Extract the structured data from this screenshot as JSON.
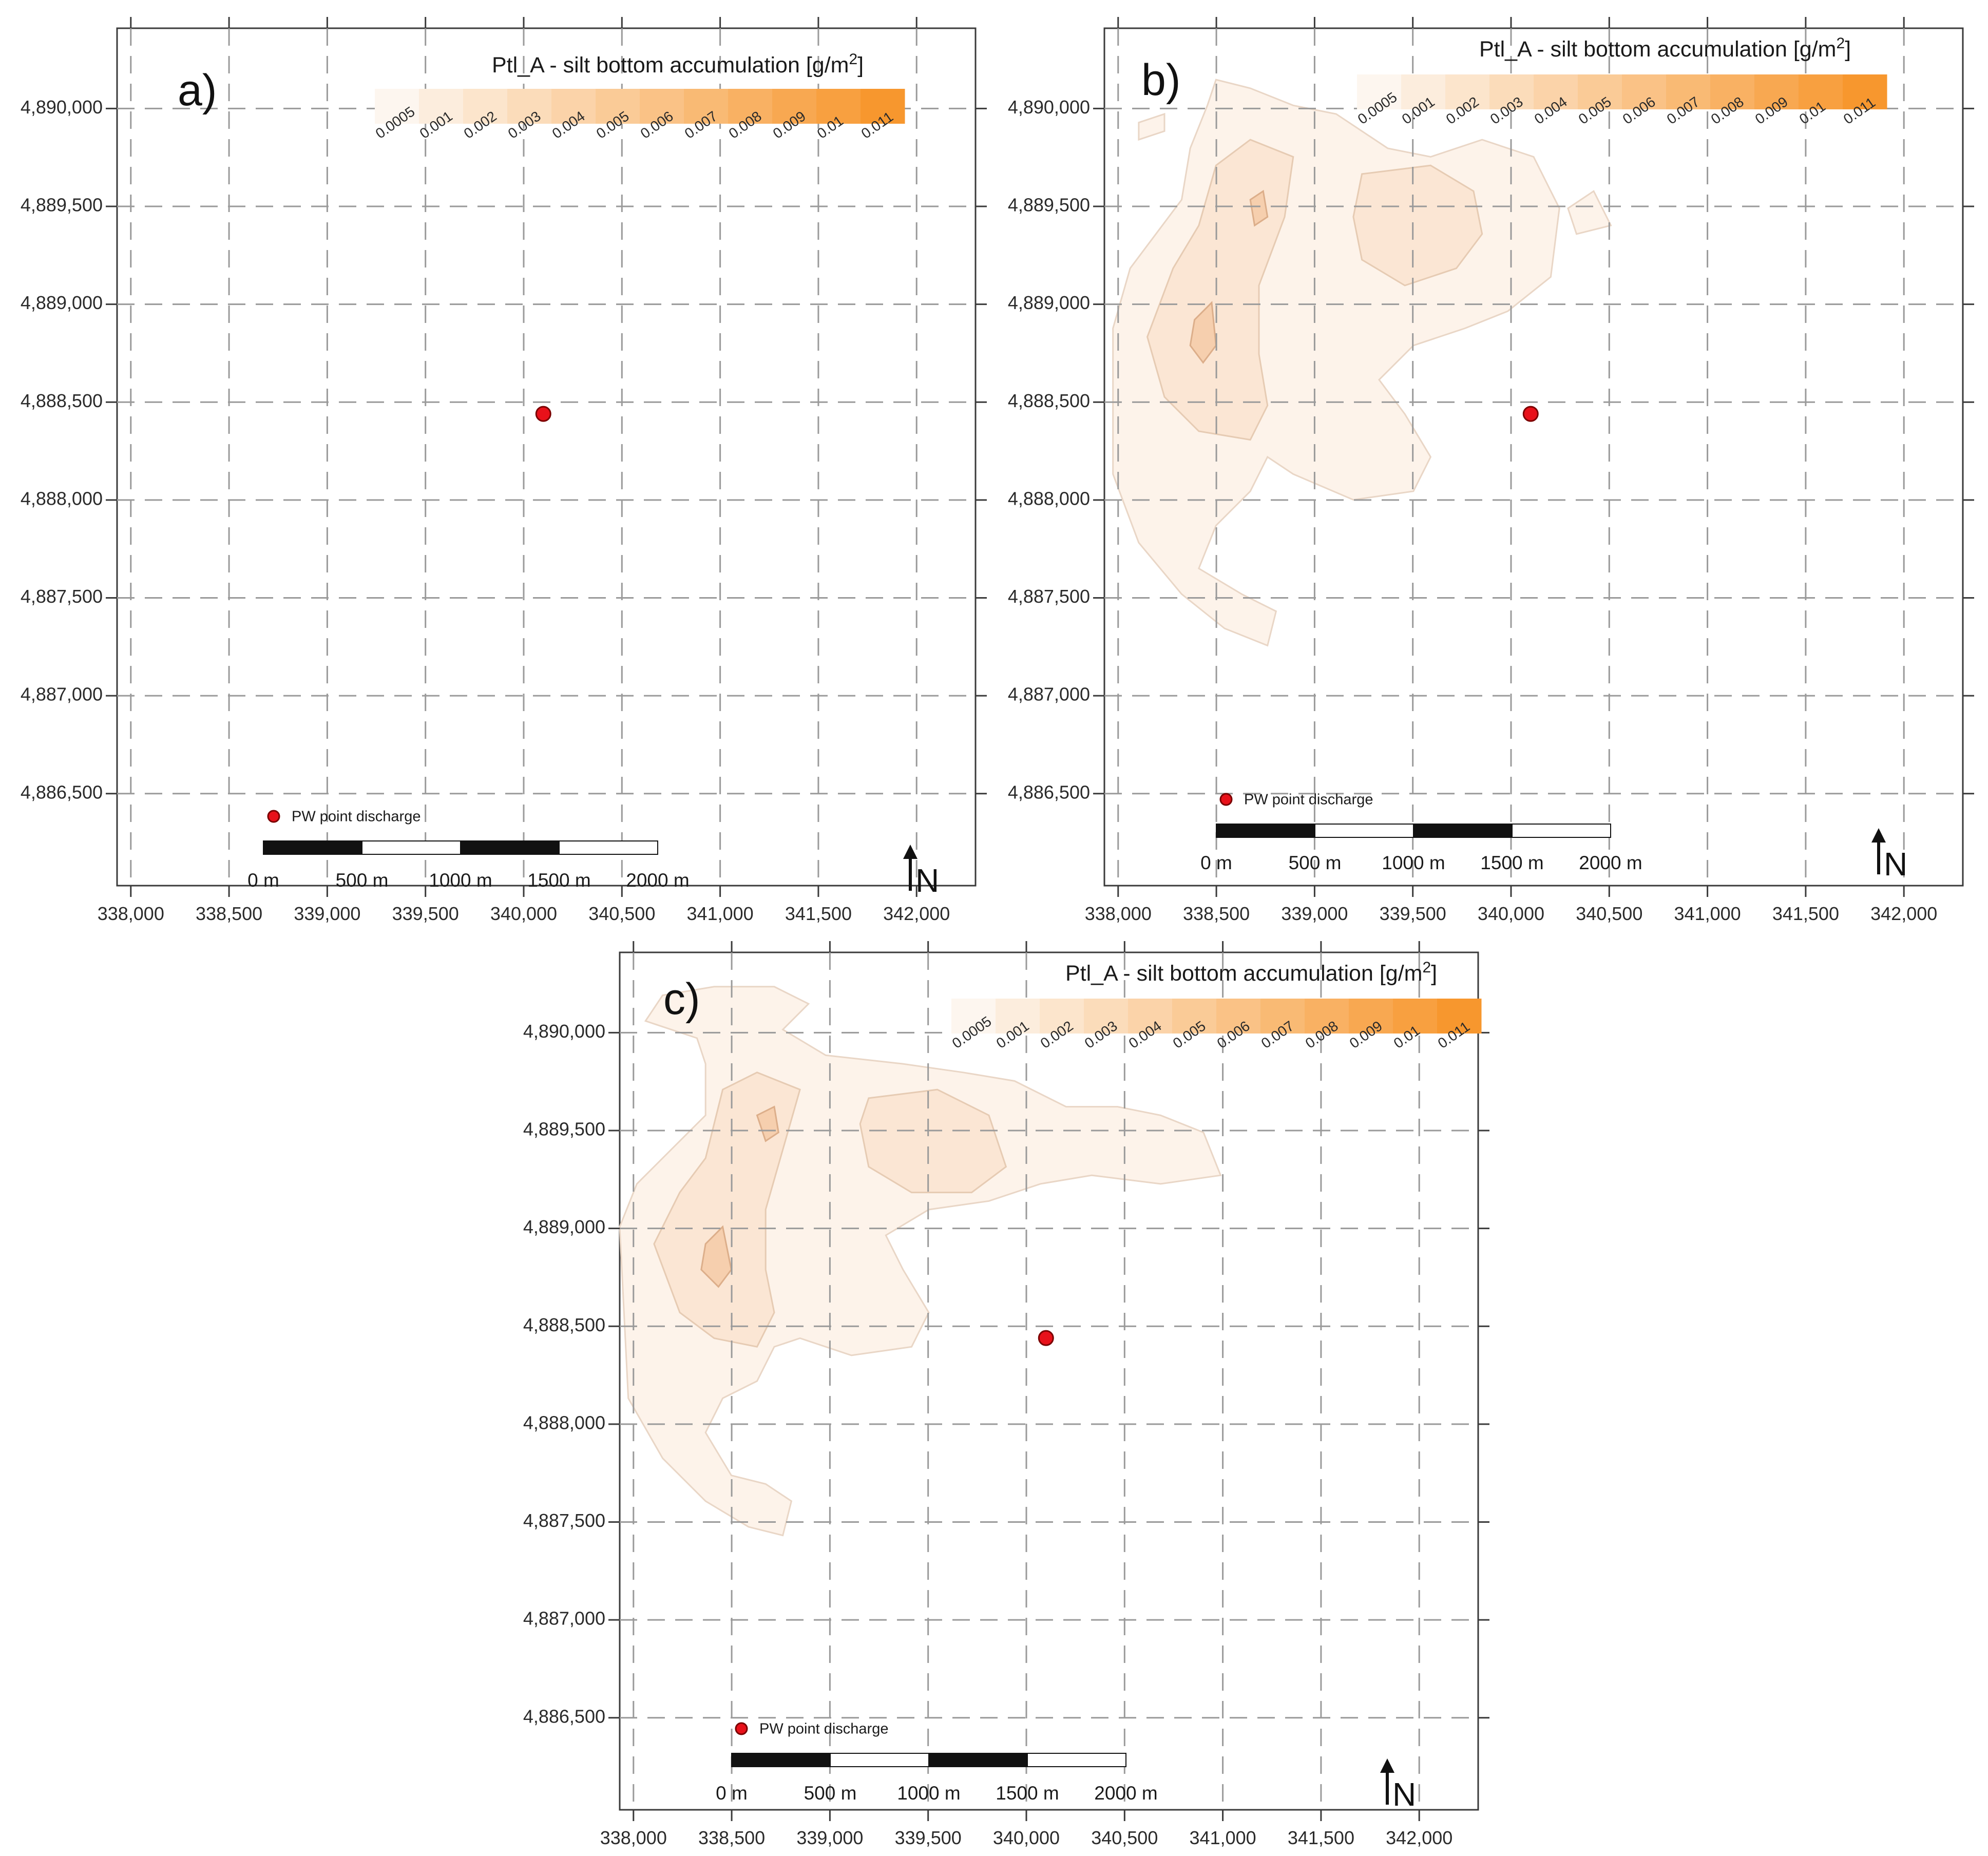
{
  "figure": {
    "x_axis": {
      "ticks": [
        "338,000",
        "338,500",
        "339,000",
        "339,500",
        "340,000",
        "340,500",
        "341,000",
        "341,500",
        "342,000"
      ]
    },
    "y_axis": {
      "ticks": [
        "4,890,000",
        "4,889,500",
        "4,889,000",
        "4,888,500",
        "4,888,000",
        "4,887,500",
        "4,887,000",
        "4,886,500"
      ]
    },
    "legend": {
      "title": "Ptl_A - silt bottom accumulation [g/m",
      "title_superscript": "2",
      "title_close": "]",
      "classes": [
        "0.0005",
        "0.001",
        "0.002",
        "0.003",
        "0.004",
        "0.005",
        "0.006",
        "0.007",
        "0.008",
        "0.009",
        "0.01",
        "0.011"
      ],
      "color_ramp_start": "#fdf6ef",
      "color_ramp_end": "#f7972e"
    },
    "scale_bar": {
      "labels": [
        "0 m",
        "500 m",
        "1000 m",
        "1500 m",
        "2000 m"
      ]
    },
    "point_legend": {
      "label": "PW point discharge",
      "color": "#e8111a"
    },
    "north_arrow": {
      "label": "N"
    },
    "panels": [
      {
        "id": "a",
        "label": "a)",
        "plume": "none"
      },
      {
        "id": "b",
        "label": "b)",
        "plume": "medium"
      },
      {
        "id": "c",
        "label": "c)",
        "plume": "large"
      }
    ],
    "discharge_point": {
      "x": 340100,
      "y": 4888440
    },
    "map_extent": {
      "x_range": [
        337930,
        342300
      ],
      "y_range": [
        4886030,
        4890410
      ]
    }
  }
}
